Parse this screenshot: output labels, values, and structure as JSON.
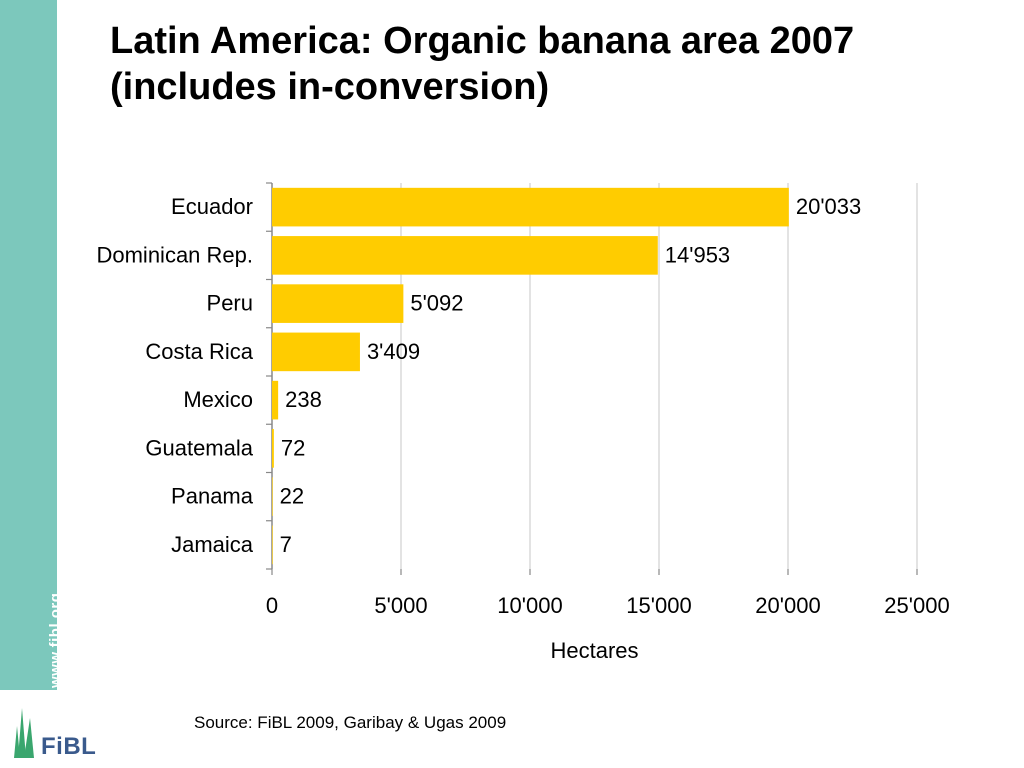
{
  "slide": {
    "title_line1": "Latin America: Organic banana area 2007",
    "title_line2": "(includes in-conversion)",
    "source": "Source: FiBL 2009, Garibay & Ugas 2009",
    "sidebar_url": "www.fibl.org",
    "logo_text": "FiBL"
  },
  "colors": {
    "bar": "#FFCC00",
    "sidebar": "#7CC8BC",
    "gridline": "#D0D0D0",
    "logo_green": "#3AA66E",
    "logo_blue": "#3A5A8C"
  },
  "chart_data": {
    "type": "bar",
    "orientation": "horizontal",
    "categories": [
      "Ecuador",
      "Dominican Rep.",
      "Peru",
      "Costa Rica",
      "Mexico",
      "Guatemala",
      "Panama",
      "Jamaica"
    ],
    "values": [
      20033,
      14953,
      5092,
      3409,
      238,
      72,
      22,
      7
    ],
    "value_labels": [
      "20'033",
      "14'953",
      "5'092",
      "3'409",
      "238",
      "72",
      "22",
      "7"
    ],
    "xlabel": "Hectares",
    "xlim": [
      0,
      25000
    ],
    "xticks": [
      0,
      5000,
      10000,
      15000,
      20000,
      25000
    ],
    "xtick_labels": [
      "0",
      "5'000",
      "10'000",
      "15'000",
      "20'000",
      "25'000"
    ],
    "grid": "vertical"
  }
}
